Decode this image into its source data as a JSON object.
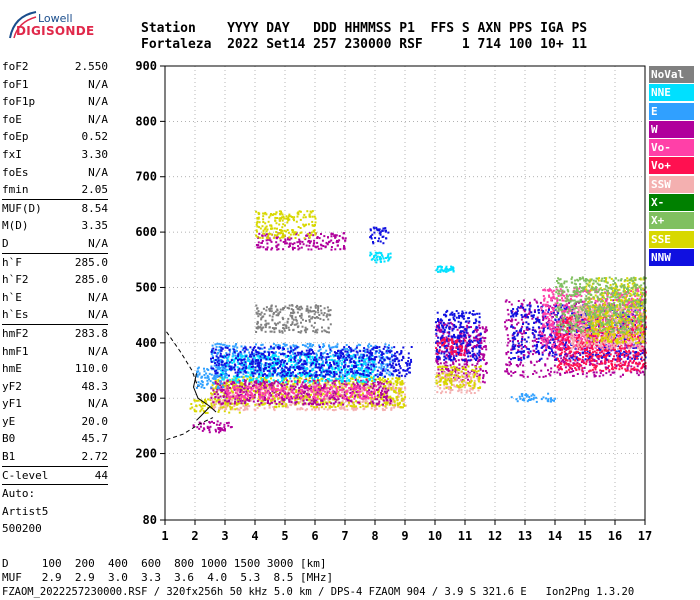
{
  "logo": {
    "line1": "Lowell",
    "line2": "DIGISONDE"
  },
  "header": {
    "line1": "Station    YYYY DAY   DDD HHMMSS P1  FFS S AXN PPS IGA PS",
    "line2": "Fortaleza  2022 Set14 257 230000 RSF     1 714 100 10+ 11"
  },
  "params": [
    {
      "name": "foF2",
      "value": "2.550"
    },
    {
      "name": "foF1",
      "value": "N/A"
    },
    {
      "name": "foF1p",
      "value": "N/A"
    },
    {
      "name": "foE",
      "value": "N/A"
    },
    {
      "name": "foEp",
      "value": "0.52"
    },
    {
      "name": "fxI",
      "value": "3.30"
    },
    {
      "name": "foEs",
      "value": "N/A"
    },
    {
      "name": "fmin",
      "value": "2.05",
      "sep": true
    },
    {
      "name": "MUF(D)",
      "value": "8.54"
    },
    {
      "name": "M(D)",
      "value": "3.35"
    },
    {
      "name": "D",
      "value": "N/A",
      "sep": true
    },
    {
      "name": "h`F",
      "value": "285.0"
    },
    {
      "name": "h`F2",
      "value": "285.0"
    },
    {
      "name": "h`E",
      "value": "N/A"
    },
    {
      "name": "h`Es",
      "value": "N/A",
      "sep": true
    },
    {
      "name": "hmF2",
      "value": "283.8"
    },
    {
      "name": "hmF1",
      "value": "N/A"
    },
    {
      "name": "hmE",
      "value": "110.0"
    },
    {
      "name": "yF2",
      "value": "48.3"
    },
    {
      "name": "yF1",
      "value": "N/A"
    },
    {
      "name": "yE",
      "value": "20.0"
    },
    {
      "name": "B0",
      "value": "45.7"
    },
    {
      "name": "B1",
      "value": "2.72",
      "sep": true
    },
    {
      "name": "C-level",
      "value": "44",
      "sep": true
    }
  ],
  "autoscale": [
    "Auto:",
    "Artist5",
    "500200"
  ],
  "legend": [
    {
      "label": "NoVal",
      "color": "#808080"
    },
    {
      "label": "NNE",
      "color": "#00e0ff"
    },
    {
      "label": "E",
      "color": "#30a0ff"
    },
    {
      "label": "W",
      "color": "#b0009c"
    },
    {
      "label": "Vo-",
      "color": "#ff40a8"
    },
    {
      "label": "Vo+",
      "color": "#ff1050"
    },
    {
      "label": "SSW",
      "color": "#f4b0b0"
    },
    {
      "label": "X-",
      "color": "#008000"
    },
    {
      "label": "X+",
      "color": "#80c060"
    },
    {
      "label": "SSE",
      "color": "#d8d800"
    },
    {
      "label": "NNW",
      "color": "#1010e0"
    }
  ],
  "footer": {
    "d_row": "D     100  200  400  600  800 1000 1500 3000 [km]",
    "muf_row": "MUF   2.9  2.9  3.0  3.3  3.6  4.0  5.3  8.5 [MHz]",
    "file_line": "FZAOM_2022257230000.RSF / 320fx256h 50 kHz 5.0 km / DPS-4 FZAOM 904 / 3.9 S 321.6 E   Ion2Png 1.3.20"
  },
  "chart_data": {
    "type": "scatter",
    "title": "",
    "xlabel": "",
    "ylabel": "",
    "xlim": [
      1,
      17
    ],
    "ylim": [
      80,
      900
    ],
    "xticks": [
      1,
      2,
      3,
      4,
      5,
      6,
      7,
      8,
      9,
      10,
      11,
      12,
      13,
      14,
      15,
      16,
      17
    ],
    "yticks": [
      80,
      200,
      300,
      400,
      500,
      600,
      700,
      800,
      900
    ],
    "grid": "dotted",
    "regions": [
      {
        "color": "#b0009c",
        "x": [
          1.9,
          3.2
        ],
        "y": [
          240,
          260
        ]
      },
      {
        "color": "#d8d800",
        "x": [
          1.8,
          3.5
        ],
        "y": [
          275,
          300
        ]
      },
      {
        "color": "#f4b0b0",
        "x": [
          2.5,
          9.0
        ],
        "y": [
          280,
          330
        ]
      },
      {
        "color": "#d8d800",
        "x": [
          2.5,
          9.0
        ],
        "y": [
          285,
          340
        ]
      },
      {
        "color": "#b0009c",
        "x": [
          2.5,
          8.5
        ],
        "y": [
          290,
          335
        ]
      },
      {
        "color": "#ff40a8",
        "x": [
          3.0,
          8.0
        ],
        "y": [
          300,
          325
        ]
      },
      {
        "color": "#30a0ff",
        "x": [
          2.5,
          8.6
        ],
        "y": [
          340,
          400
        ]
      },
      {
        "color": "#00e0ff",
        "x": [
          2.8,
          8.0
        ],
        "y": [
          330,
          380
        ]
      },
      {
        "color": "#1010e0",
        "x": [
          2.5,
          9.2
        ],
        "y": [
          340,
          395
        ]
      },
      {
        "color": "#30a0ff",
        "x": [
          2.0,
          3.0
        ],
        "y": [
          320,
          360
        ]
      },
      {
        "color": "#1010e0",
        "x": [
          7.8,
          8.5
        ],
        "y": [
          580,
          610
        ]
      },
      {
        "color": "#00e0ff",
        "x": [
          7.8,
          8.5
        ],
        "y": [
          545,
          565
        ]
      },
      {
        "color": "#b0009c",
        "x": [
          4.0,
          7.0
        ],
        "y": [
          570,
          600
        ]
      },
      {
        "color": "#d8d800",
        "x": [
          4.0,
          6.0
        ],
        "y": [
          590,
          640
        ]
      },
      {
        "color": "#808080",
        "x": [
          4.0,
          6.5
        ],
        "y": [
          420,
          470
        ]
      },
      {
        "color": "#b0009c",
        "x": [
          10.0,
          11.7
        ],
        "y": [
          330,
          440
        ]
      },
      {
        "color": "#1010e0",
        "x": [
          10.0,
          11.5
        ],
        "y": [
          370,
          460
        ]
      },
      {
        "color": "#f4b0b0",
        "x": [
          10.0,
          11.5
        ],
        "y": [
          310,
          350
        ]
      },
      {
        "color": "#d8d800",
        "x": [
          10.0,
          11.5
        ],
        "y": [
          320,
          360
        ]
      },
      {
        "color": "#ff1050",
        "x": [
          10.0,
          11.0
        ],
        "y": [
          380,
          410
        ]
      },
      {
        "color": "#b0009c",
        "x": [
          12.3,
          17.0
        ],
        "y": [
          340,
          480
        ]
      },
      {
        "color": "#1010e0",
        "x": [
          12.5,
          17.0
        ],
        "y": [
          370,
          470
        ]
      },
      {
        "color": "#ff40a8",
        "x": [
          13.5,
          17.0
        ],
        "y": [
          390,
          500
        ]
      },
      {
        "color": "#ff1050",
        "x": [
          14.0,
          17.0
        ],
        "y": [
          350,
          450
        ]
      },
      {
        "color": "#f4b0b0",
        "x": [
          14.5,
          17.0
        ],
        "y": [
          390,
          470
        ]
      },
      {
        "color": "#30a0ff",
        "x": [
          12.5,
          14.0
        ],
        "y": [
          295,
          310
        ]
      },
      {
        "color": "#d8d800",
        "x": [
          15.0,
          17.0
        ],
        "y": [
          400,
          520
        ]
      },
      {
        "color": "#80c060",
        "x": [
          14.0,
          17.0
        ],
        "y": [
          420,
          520
        ]
      },
      {
        "color": "#00e0ff",
        "x": [
          10.0,
          10.6
        ],
        "y": [
          530,
          540
        ]
      }
    ],
    "curves": [
      {
        "style": "dashed",
        "points": [
          [
            1.05,
            420
          ],
          [
            1.5,
            385
          ],
          [
            1.9,
            350
          ],
          [
            2.1,
            320
          ]
        ]
      },
      {
        "style": "dashed",
        "points": [
          [
            1.05,
            225
          ],
          [
            1.6,
            235
          ],
          [
            2.2,
            255
          ],
          [
            2.6,
            265
          ]
        ]
      },
      {
        "style": "solid",
        "points": [
          [
            2.05,
            345
          ],
          [
            1.95,
            320
          ],
          [
            2.1,
            300
          ],
          [
            2.5,
            285
          ],
          [
            2.7,
            275
          ]
        ]
      },
      {
        "style": "solid",
        "points": [
          [
            2.05,
            260
          ],
          [
            2.2,
            268
          ],
          [
            2.5,
            285
          ]
        ]
      }
    ]
  }
}
